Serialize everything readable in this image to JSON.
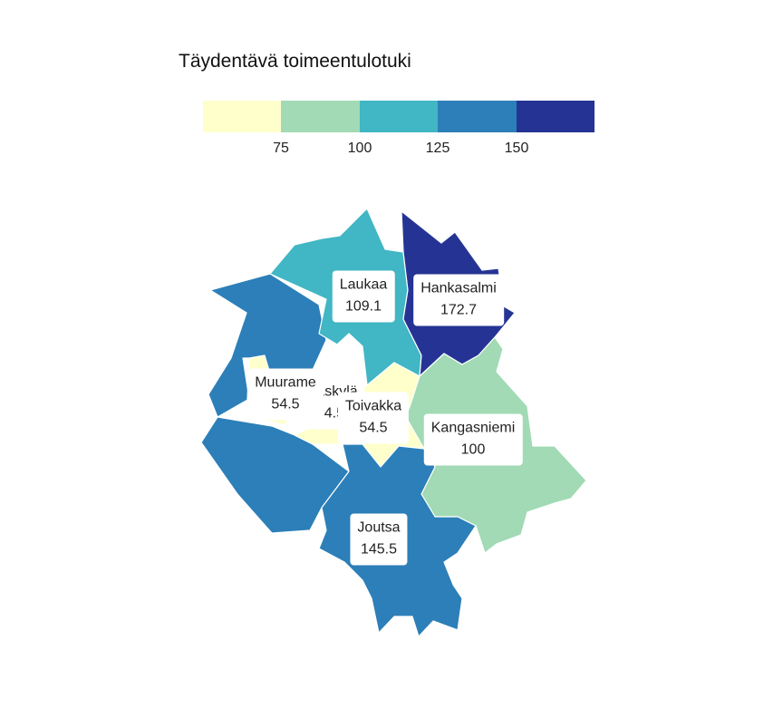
{
  "legend": {
    "title": "Täydentävä toimeentulotuki",
    "colors": [
      "#ffffcc",
      "#a1dab4",
      "#41b6c4",
      "#2c7fb8",
      "#253494"
    ],
    "ticks": [
      "75",
      "100",
      "125",
      "150"
    ]
  },
  "regions": [
    {
      "name": "Laukaa",
      "value": "109.1",
      "color": "#41b6c4"
    },
    {
      "name": "Hankasalmi",
      "value": "172.7",
      "color": "#253494"
    },
    {
      "name": "Muurame",
      "value": "54.5",
      "color": "#ffffcc"
    },
    {
      "name": "Jyväskylä",
      "value": "154.5",
      "color": "#253494"
    },
    {
      "name": "Toivakka",
      "value": "54.5",
      "color": "#ffffcc"
    },
    {
      "name": "Kangasniemi",
      "value": "100",
      "color": "#a1dab4"
    },
    {
      "name": "Joutsa",
      "value": "145.5",
      "color": "#2c7fb8"
    }
  ]
}
